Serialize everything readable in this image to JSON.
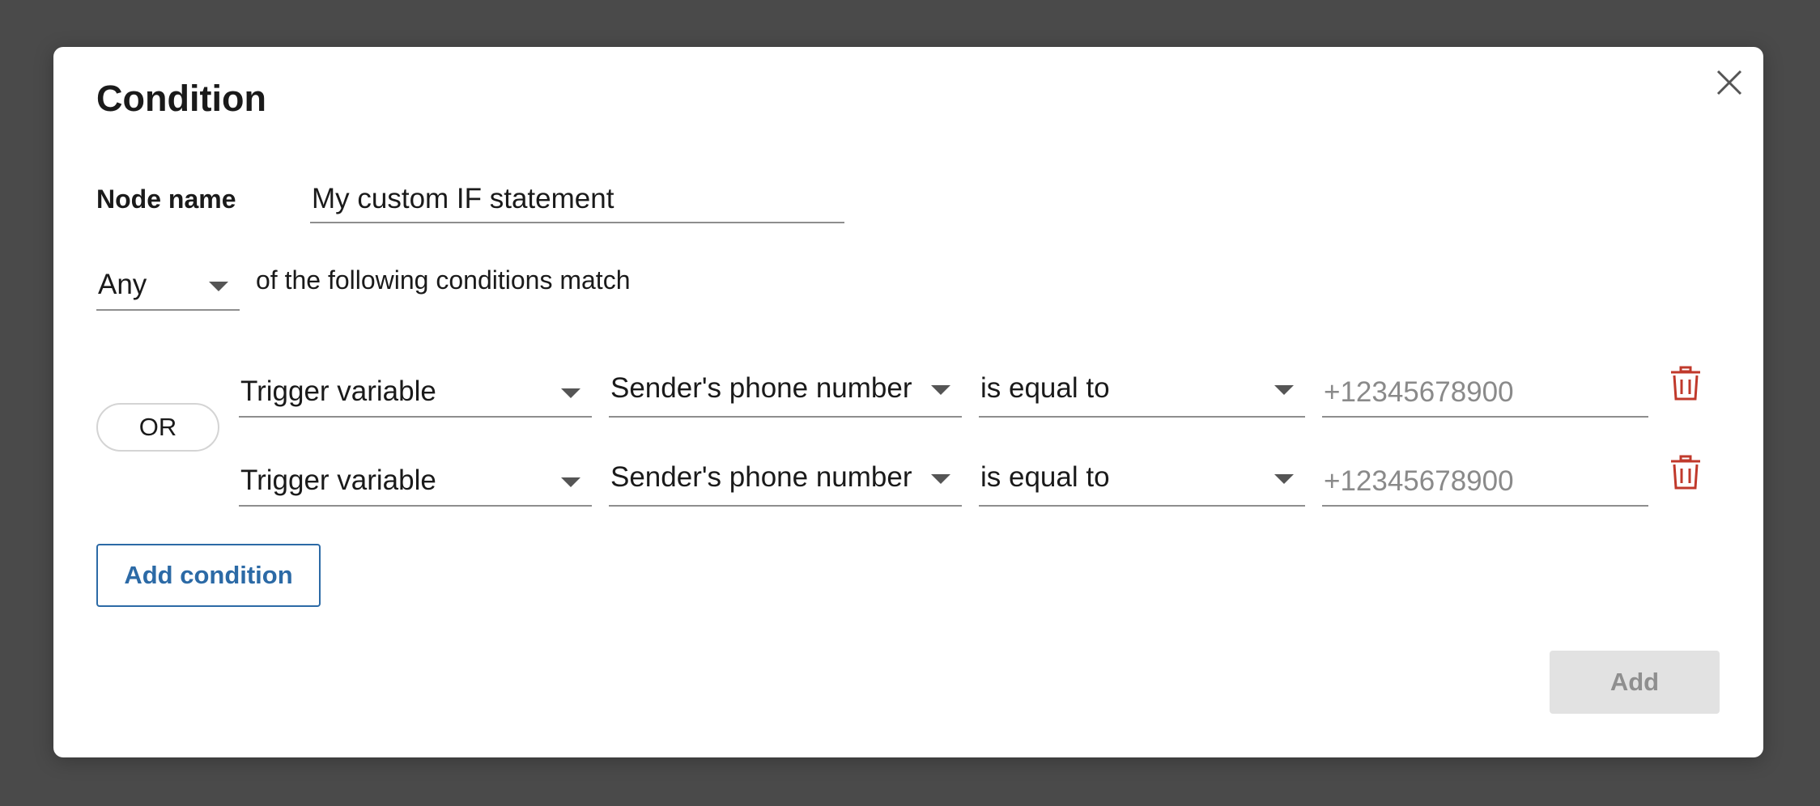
{
  "dialog": {
    "title": "Condition",
    "close_icon": "close-icon"
  },
  "node": {
    "label": "Node name",
    "value": "My custom IF statement"
  },
  "match": {
    "selected": "Any",
    "suffix": "of the following conditions match"
  },
  "operator_label": "OR",
  "conditions": [
    {
      "source": "Trigger variable",
      "variable": "Sender's phone number",
      "operator": "is equal to",
      "value": "",
      "placeholder": "+12345678900",
      "delete_icon": "trash-icon"
    },
    {
      "source": "Trigger variable",
      "variable": "Sender's phone number",
      "operator": "is equal to",
      "value": "",
      "placeholder": "+12345678900",
      "delete_icon": "trash-icon"
    }
  ],
  "buttons": {
    "add_condition": "Add condition",
    "add": "Add"
  },
  "colors": {
    "accent": "#2c6aa6",
    "delete": "#c0392b",
    "disabled_bg": "#e2e2e2",
    "backdrop": "#4a4a4a"
  }
}
